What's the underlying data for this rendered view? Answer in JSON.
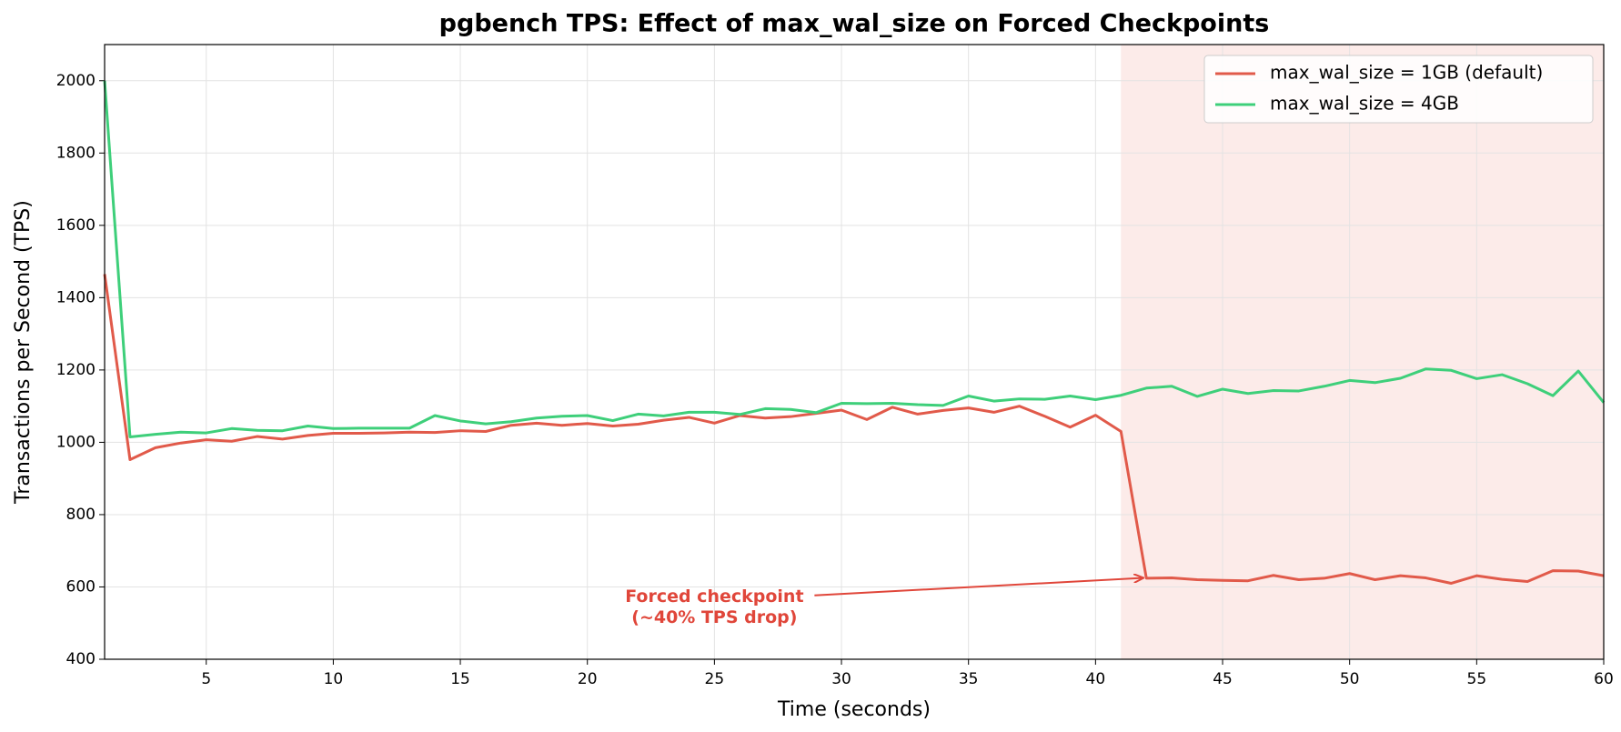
{
  "chart_data": {
    "type": "line",
    "title": "pgbench TPS: Effect of max_wal_size on Forced Checkpoints",
    "xlabel": "Time (seconds)",
    "ylabel": "Transactions per Second (TPS)",
    "x": [
      1,
      2,
      3,
      4,
      5,
      6,
      7,
      8,
      9,
      10,
      11,
      12,
      13,
      14,
      15,
      16,
      17,
      18,
      19,
      20,
      21,
      22,
      23,
      24,
      25,
      26,
      27,
      28,
      29,
      30,
      31,
      32,
      33,
      34,
      35,
      36,
      37,
      38,
      39,
      40,
      41,
      42,
      43,
      44,
      45,
      46,
      47,
      48,
      49,
      50,
      51,
      52,
      53,
      54,
      55,
      56,
      57,
      58,
      59,
      60
    ],
    "series": [
      {
        "name": "max_wal_size = 1GB (default)",
        "color": "#e15a4a",
        "values": [
          1465,
          952,
          985,
          998,
          1007,
          1003,
          1016,
          1009,
          1019,
          1025,
          1025,
          1026,
          1028,
          1027,
          1032,
          1030,
          1047,
          1053,
          1047,
          1052,
          1045,
          1050,
          1061,
          1069,
          1053,
          1074,
          1067,
          1071,
          1080,
          1089,
          1063,
          1097,
          1078,
          1088,
          1095,
          1083,
          1100,
          1072,
          1042,
          1075,
          1030,
          624,
          625,
          620,
          618,
          617,
          632,
          620,
          624,
          637,
          620,
          631,
          625,
          610,
          631,
          621,
          615,
          645,
          644,
          631
        ]
      },
      {
        "name": "max_wal_size = 4GB",
        "color": "#3ecf7a",
        "values": [
          2000,
          1015,
          1022,
          1028,
          1026,
          1038,
          1033,
          1032,
          1045,
          1038,
          1039,
          1039,
          1039,
          1074,
          1059,
          1051,
          1057,
          1067,
          1072,
          1074,
          1060,
          1078,
          1073,
          1083,
          1083,
          1077,
          1093,
          1091,
          1082,
          1108,
          1107,
          1108,
          1104,
          1102,
          1128,
          1114,
          1120,
          1119,
          1128,
          1118,
          1130,
          1150,
          1155,
          1127,
          1147,
          1135,
          1143,
          1142,
          1155,
          1171,
          1165,
          1177,
          1203,
          1199,
          1176,
          1187,
          1162,
          1129,
          1197,
          1110
        ]
      }
    ],
    "xlim": [
      1,
      60
    ],
    "xticks": [
      5,
      10,
      15,
      20,
      25,
      30,
      35,
      40,
      45,
      50,
      55,
      60
    ],
    "ylim": [
      400,
      2100
    ],
    "yticks": [
      400,
      600,
      800,
      1000,
      1200,
      1400,
      1600,
      1800,
      2000
    ],
    "grid": true,
    "legend": "upper right",
    "shaded_span": {
      "x": [
        41,
        60
      ],
      "color": "#fbe3df"
    },
    "annotation": {
      "text_lines": [
        "Forced checkpoint",
        "(~40% TPS drop)"
      ],
      "xy": [
        42,
        625
      ],
      "xytext": [
        25,
        544
      ],
      "color": "#e0463a"
    }
  }
}
